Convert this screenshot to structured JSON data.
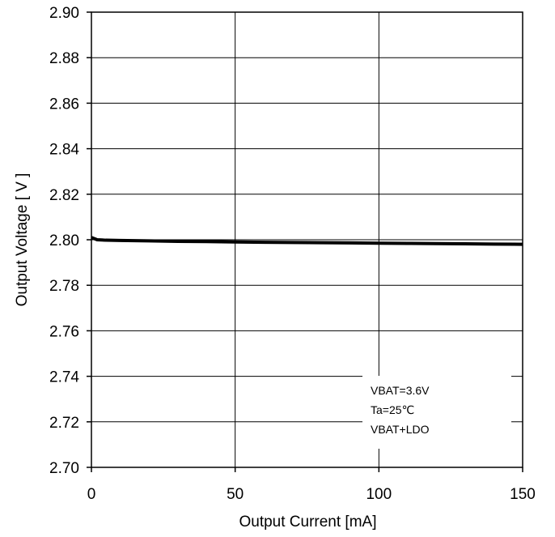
{
  "chart_data": {
    "type": "line",
    "title": "",
    "xlabel": "Output Current [mA]",
    "ylabel": "Output Voltage [ V ]",
    "xlim": [
      0,
      150
    ],
    "ylim": [
      2.7,
      2.9
    ],
    "x_ticks": [
      "0",
      "50",
      "100",
      "150"
    ],
    "x_tick_values": [
      0,
      50,
      100,
      150
    ],
    "y_ticks": [
      "2.70",
      "2.72",
      "2.74",
      "2.76",
      "2.78",
      "2.80",
      "2.82",
      "2.84",
      "2.86",
      "2.88",
      "2.90"
    ],
    "y_tick_values": [
      2.7,
      2.72,
      2.74,
      2.76,
      2.78,
      2.8,
      2.82,
      2.84,
      2.86,
      2.88,
      2.9
    ],
    "grid": true,
    "series": [
      {
        "color": "#000000",
        "x": [
          0,
          2,
          5,
          10,
          20,
          30,
          40,
          50,
          60,
          70,
          80,
          90,
          100,
          110,
          120,
          130,
          140,
          150
        ],
        "y": [
          2.801,
          2.8,
          2.7998,
          2.7997,
          2.7995,
          2.7993,
          2.7992,
          2.799,
          2.7989,
          2.7988,
          2.7987,
          2.7986,
          2.7985,
          2.7984,
          2.7983,
          2.7982,
          2.7981,
          2.798
        ]
      }
    ],
    "annotations": [
      "VBAT=3.6V",
      "Ta=25℃",
      "VBAT+LDO"
    ]
  }
}
